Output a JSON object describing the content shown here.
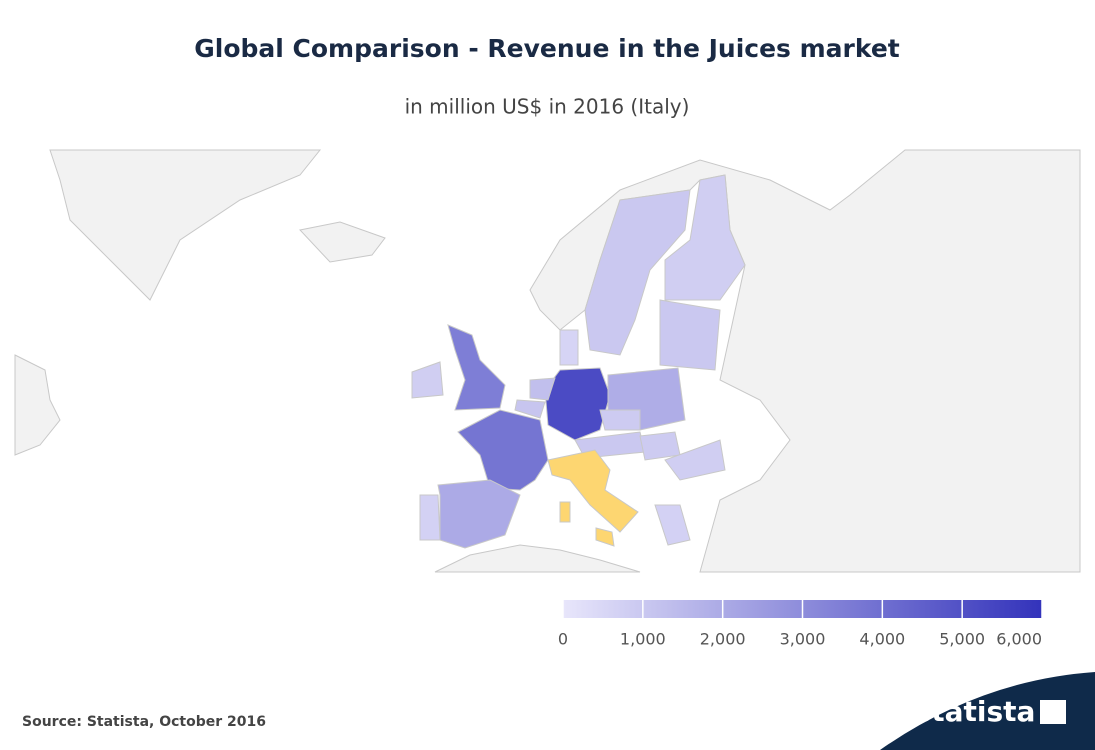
{
  "chart_data": {
    "type": "choropleth",
    "title": "Global Comparison - Revenue in the Juices market",
    "subtitle": "in million US$ in 2016 (Italy)",
    "values": [
      5200,
      3800,
      3500,
      800,
      2000,
      700,
      1900,
      1000,
      800,
      600,
      1300,
      1100,
      900,
      1000,
      900,
      800,
      1000,
      700
    ],
    "highlight_color": "#fdd671",
    "land_color": "#f2f2f2",
    "color_range": [
      "#e8e6fb",
      "#3333bb"
    ],
    "colorbar": {
      "lim": [
        0,
        6000
      ],
      "ticks": [
        0,
        {
          "value": 1000,
          "label": "1,000"
        },
        {
          "value": 2000,
          "label": "2,000"
        },
        {
          "value": 3000,
          "label": "3,000"
        },
        {
          "value": 4000,
          "label": "4,000"
        },
        {
          "value": 5000,
          "label": "5,000"
        },
        {
          "value": 6000,
          "label": "6,000"
        }
      ]
    },
    "source": "Source: Statista, October 2016",
    "logo": "statista"
  }
}
